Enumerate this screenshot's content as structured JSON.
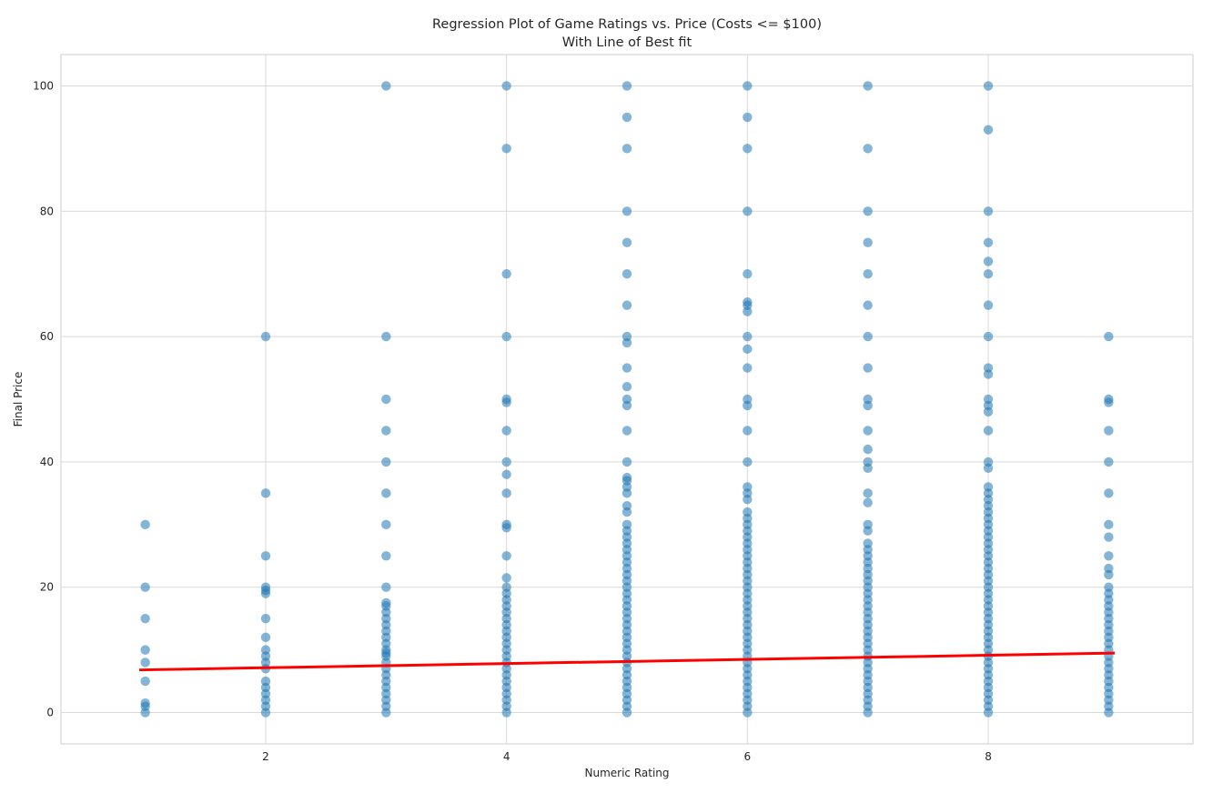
{
  "chart_data": {
    "type": "scatter",
    "title_lines": [
      "Regression Plot of Game Ratings vs. Price (Costs <= $100)",
      "With Line of Best fit"
    ],
    "xlabel": "Numeric Rating",
    "ylabel": "Final Price",
    "xlim": [
      0.3,
      9.7
    ],
    "ylim": [
      -5,
      105
    ],
    "x_ticks": [
      2,
      4,
      6,
      8
    ],
    "y_ticks": [
      0,
      20,
      40,
      60,
      80,
      100
    ],
    "grid": true,
    "point_color": "#1f77b4",
    "line_color": "#ff0000",
    "regression_line": {
      "x": [
        0.95,
        9.05
      ],
      "y": [
        6.8,
        9.5
      ]
    },
    "series": [
      {
        "x": 1,
        "values": [
          30,
          20,
          15,
          10,
          8,
          5,
          1.5,
          1,
          0
        ]
      },
      {
        "x": 2,
        "values": [
          60,
          35,
          25,
          20,
          19.5,
          19,
          15,
          12,
          10,
          9,
          8,
          7,
          5,
          4,
          3,
          2,
          1,
          0
        ]
      },
      {
        "x": 3,
        "values": [
          100,
          60,
          50,
          45,
          40,
          35,
          30,
          25,
          20,
          17.5,
          17,
          16,
          15,
          14,
          13,
          12,
          11,
          10,
          9.5,
          9,
          8,
          7,
          6,
          5,
          4,
          3,
          2,
          1,
          0
        ]
      },
      {
        "x": 4,
        "values": [
          100,
          90,
          70,
          60,
          50,
          49.5,
          45,
          40,
          38,
          35,
          30,
          29.5,
          25,
          21.5,
          20,
          19,
          18,
          17,
          16,
          15,
          14,
          13,
          12,
          11,
          10,
          9,
          8,
          7,
          6,
          5,
          4,
          3,
          2,
          1,
          0
        ]
      },
      {
        "x": 5,
        "values": [
          100,
          95,
          90,
          80,
          75,
          70,
          65,
          60,
          59,
          55,
          52,
          50,
          49,
          45,
          40,
          37.5,
          37,
          36,
          35,
          33,
          32,
          30,
          29,
          28,
          27,
          26,
          25,
          24,
          23,
          22,
          21,
          20,
          19,
          18,
          17,
          16,
          15,
          14,
          13,
          12,
          11,
          10,
          9,
          8,
          7,
          6,
          5,
          4,
          3,
          2,
          1,
          0
        ]
      },
      {
        "x": 6,
        "values": [
          100,
          95,
          90,
          80,
          70,
          65.5,
          65,
          64,
          60,
          58,
          55,
          50,
          49,
          45,
          40,
          36,
          35,
          34,
          32,
          31,
          30,
          29,
          28,
          27,
          26,
          25,
          24,
          23,
          22,
          21,
          20,
          19,
          18,
          17,
          16,
          15,
          14,
          13,
          12,
          11,
          10,
          9,
          8,
          7,
          6,
          5,
          4,
          3,
          2,
          1,
          0
        ]
      },
      {
        "x": 7,
        "values": [
          100,
          90,
          80,
          75,
          70,
          65,
          60,
          55,
          50,
          49,
          45,
          42,
          40,
          39,
          35,
          33.5,
          30,
          29,
          27,
          26,
          25,
          24,
          23,
          22,
          21,
          20,
          19,
          18,
          17,
          16,
          15,
          14,
          13,
          12,
          11,
          10,
          9,
          8,
          7,
          6,
          5,
          4,
          3,
          2,
          1,
          0
        ]
      },
      {
        "x": 8,
        "values": [
          100,
          93,
          80,
          75,
          72,
          70,
          65,
          60,
          55,
          54,
          50,
          49,
          48,
          45,
          40,
          39,
          36,
          35,
          34,
          33,
          32,
          31,
          30,
          29,
          28,
          27,
          26,
          25,
          24,
          23,
          22,
          21,
          20,
          19,
          18,
          17,
          16,
          15,
          14,
          13,
          12,
          11,
          10,
          9,
          8,
          7,
          6,
          5,
          4,
          3,
          2,
          1,
          0
        ]
      },
      {
        "x": 9,
        "values": [
          60,
          50,
          49.5,
          45,
          40,
          35,
          30,
          28,
          25,
          23,
          22,
          20,
          19,
          18,
          17,
          16,
          15,
          14,
          13,
          12,
          11,
          10,
          9,
          8,
          7,
          6,
          5,
          4,
          3,
          2,
          1,
          0
        ]
      }
    ]
  }
}
